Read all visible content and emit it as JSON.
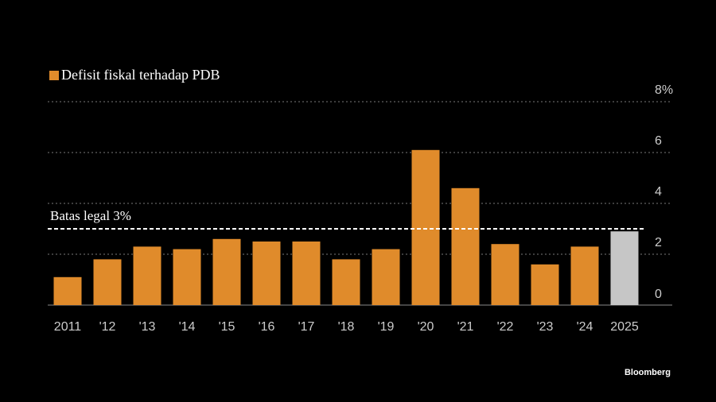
{
  "chart_data": {
    "type": "bar",
    "categories": [
      "2011",
      "'12",
      "'13",
      "'14",
      "'15",
      "'16",
      "'17",
      "'18",
      "'19",
      "'20",
      "'21",
      "'22",
      "'23",
      "'24",
      "2025"
    ],
    "series": [
      {
        "name": "Defisit fiskal terhadap PDB",
        "values": [
          1.1,
          1.8,
          2.3,
          2.2,
          2.6,
          2.5,
          2.5,
          1.8,
          2.2,
          6.1,
          4.6,
          2.4,
          1.6,
          2.3,
          2.9
        ]
      }
    ],
    "projected_categories": [
      "2025"
    ],
    "yticks": [
      0,
      2,
      4,
      6,
      8
    ],
    "ytick_labels": [
      "0",
      "2",
      "4",
      "6",
      "8%"
    ],
    "ylim": [
      0,
      8
    ],
    "reference_line": {
      "value": 3,
      "label": "Batas legal 3%"
    },
    "legend_position": "top-left",
    "grid": true,
    "colors": {
      "bar": "#e08b2b",
      "projected": "#c6c6c6",
      "grid": "#7a7a7a",
      "reference": "#ffffff",
      "text": "#cccccc",
      "background": "#000000"
    }
  },
  "source": "Bloomberg"
}
